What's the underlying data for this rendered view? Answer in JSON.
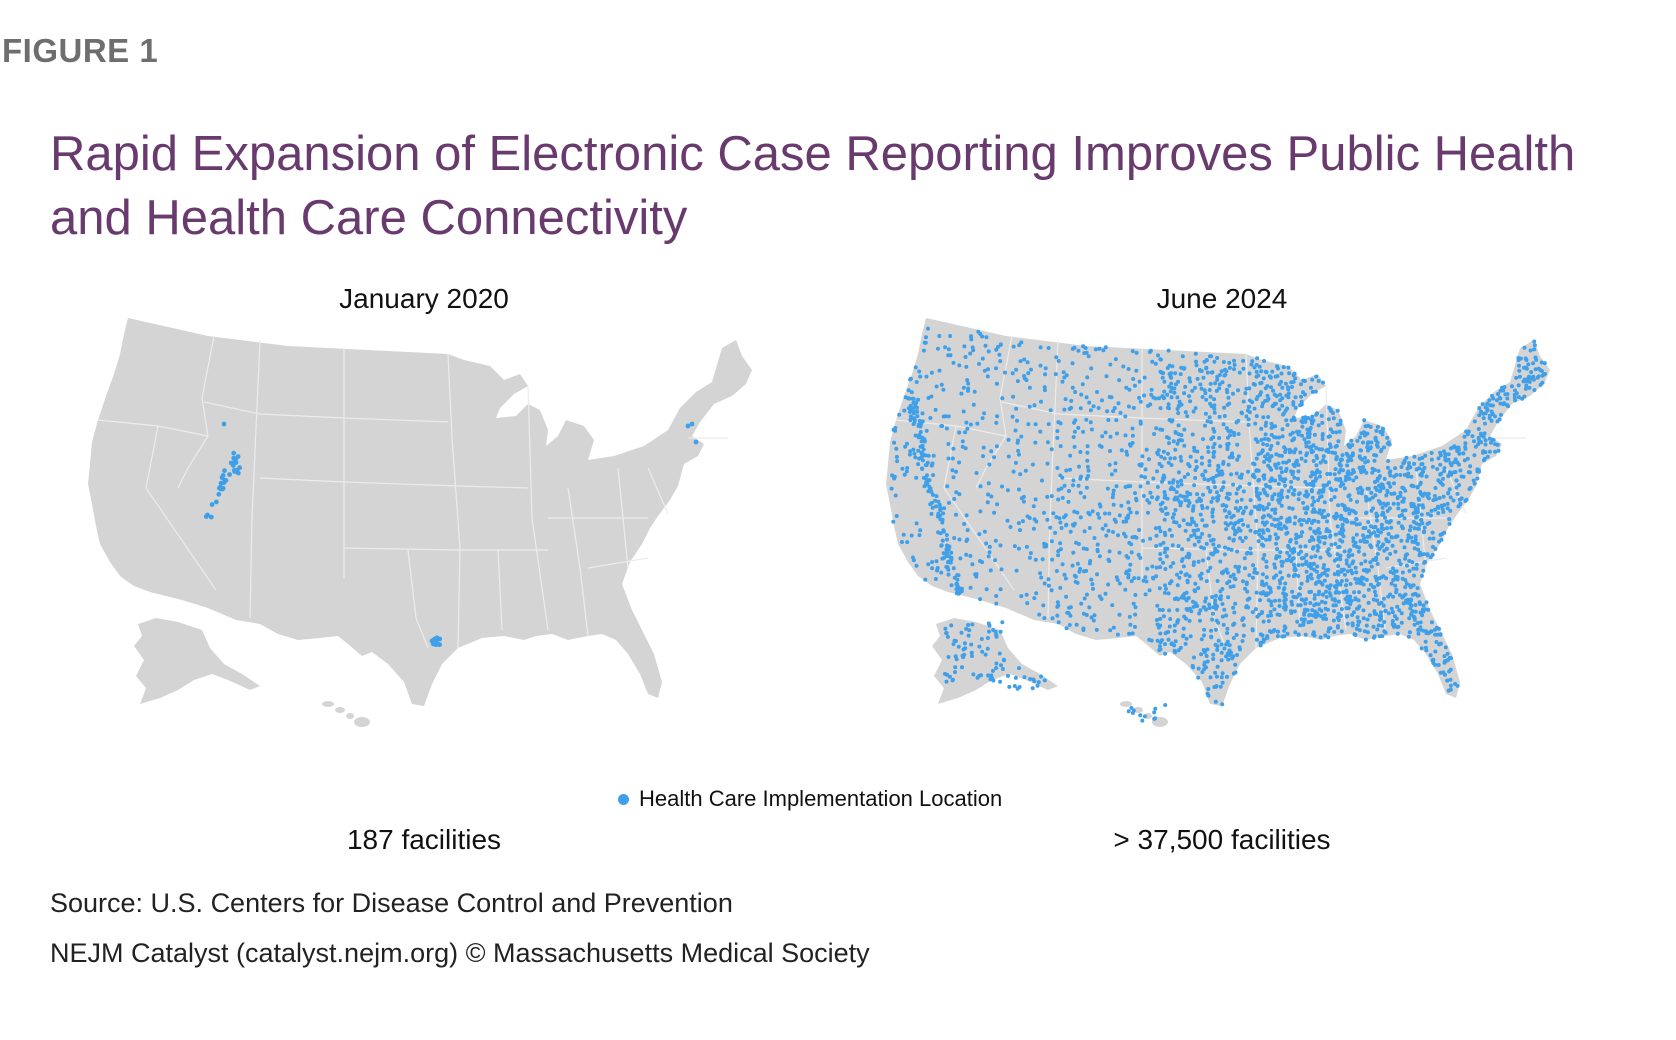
{
  "figure_label": "FIGURE 1",
  "title": "Rapid Expansion of Electronic Case Reporting Improves Public Health and Health Care Connectivity",
  "colors": {
    "title": "#693a6e",
    "land": "#d4d4d4",
    "border": "#ececec",
    "dot": "#3f9fe8"
  },
  "maps": [
    {
      "period": "January 2020",
      "count_label": "187 facilities",
      "density": "sparse"
    },
    {
      "period": "June 2024",
      "count_label": "> 37,500 facilities",
      "density": "dense"
    }
  ],
  "legend": {
    "label": "Health Care Implementation Location",
    "icon": "dot-icon"
  },
  "footer": {
    "source": "Source: U.S. Centers for Disease Control and Prevention",
    "credit": "NEJM Catalyst (catalyst.nejm.org) © Massachusetts Medical Society"
  }
}
